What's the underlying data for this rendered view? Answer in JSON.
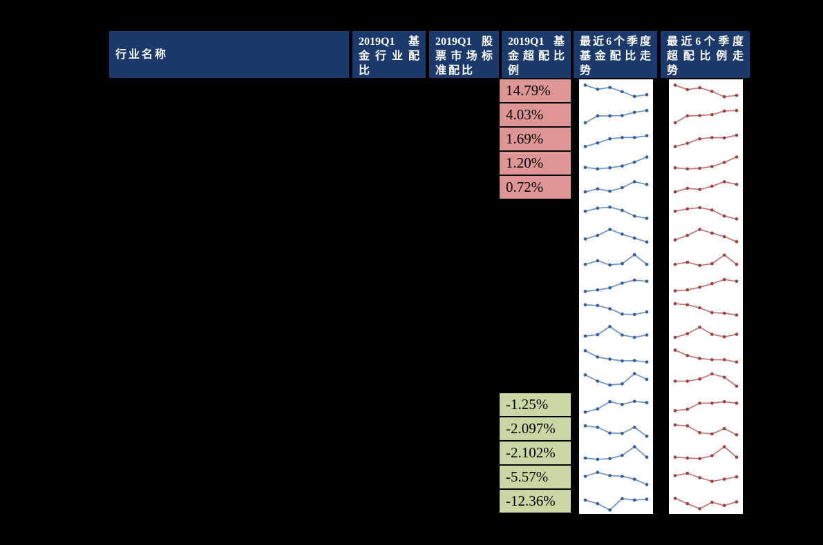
{
  "colors": {
    "page_bg": "#000000",
    "header_bg": "#1b3a6b",
    "header_text": "#ffffff",
    "positive_cell_bg": "#dd9694",
    "negative_cell_bg": "#c9d7a3",
    "cell_text": "#000000",
    "chart_bg": "#ffffff",
    "fund_line": "#6b92c3",
    "fund_marker": "#2d5b9e",
    "over_line": "#c17673",
    "over_marker": "#a23b39"
  },
  "table": {
    "columns": [
      {
        "label": "行业名称",
        "lines": [
          "行业名称"
        ]
      },
      {
        "label": "2019Q1 基金行业配比",
        "lines": [
          "2019Q1 基",
          "金行业配",
          "比"
        ]
      },
      {
        "label": "2019Q1 股票市场标准配比",
        "lines": [
          "2019Q1 股",
          "票市场标",
          "准配比"
        ]
      },
      {
        "label": "2019Q1基金超配比例",
        "lines": [
          "2019Q1 基",
          "金超配比",
          "例"
        ]
      },
      {
        "label": "最近6个季度基金配比走势",
        "lines": [
          "最近6个季度",
          "基金配比走",
          "势"
        ]
      },
      {
        "label": "最近6个季度超配比例走势",
        "lines": [
          "最近6个季度",
          "超配比例走",
          "势"
        ]
      }
    ]
  },
  "chart_data": {
    "type": "table",
    "title": "2019Q1 基金行业配比与超配比例",
    "columns": [
      "行业名称",
      "2019Q1 基金行业配比",
      "2019Q1 股票市场标准配比",
      "2019Q1基金超配比例",
      "最近6个季度基金配比走势",
      "最近6个季度超配比例走势"
    ],
    "sparkline_points_per_row": 6,
    "sparkline_scale": "normalized 0-1, estimated from pixels",
    "rows": [
      {
        "over_ratio": "14.79%",
        "highlight": "positive",
        "fund_trend": [
          0.85,
          0.62,
          0.72,
          0.48,
          0.22,
          0.32
        ],
        "over_trend": [
          0.85,
          0.6,
          0.7,
          0.5,
          0.2,
          0.28
        ]
      },
      {
        "over_ratio": "4.03%",
        "highlight": "positive",
        "fund_trend": [
          0.1,
          0.48,
          0.48,
          0.5,
          0.68,
          0.78
        ],
        "over_trend": [
          0.1,
          0.48,
          0.5,
          0.55,
          0.75,
          0.78
        ]
      },
      {
        "over_ratio": "1.69%",
        "highlight": "positive",
        "fund_trend": [
          0.12,
          0.32,
          0.55,
          0.62,
          0.62,
          0.72
        ],
        "over_trend": [
          0.12,
          0.3,
          0.55,
          0.62,
          0.6,
          0.75
        ]
      },
      {
        "over_ratio": "1.20%",
        "highlight": "positive",
        "fund_trend": [
          0.3,
          0.22,
          0.28,
          0.38,
          0.6,
          0.88
        ],
        "over_trend": [
          0.28,
          0.22,
          0.25,
          0.35,
          0.58,
          0.88
        ]
      },
      {
        "over_ratio": "0.72%",
        "highlight": "positive",
        "fund_trend": [
          0.28,
          0.45,
          0.32,
          0.52,
          0.85,
          0.7
        ],
        "over_trend": [
          0.28,
          0.48,
          0.42,
          0.6,
          0.85,
          0.7
        ]
      },
      {
        "over_ratio": null,
        "highlight": "none",
        "fund_trend": [
          0.55,
          0.72,
          0.78,
          0.6,
          0.28,
          0.15
        ],
        "over_trend": [
          0.55,
          0.68,
          0.75,
          0.62,
          0.28,
          0.12
        ]
      },
      {
        "over_ratio": null,
        "highlight": "none",
        "fund_trend": [
          0.35,
          0.55,
          0.88,
          0.62,
          0.4,
          0.18
        ],
        "over_trend": [
          0.3,
          0.55,
          0.88,
          0.68,
          0.48,
          0.2
        ]
      },
      {
        "over_ratio": null,
        "highlight": "none",
        "fund_trend": [
          0.28,
          0.48,
          0.25,
          0.32,
          0.82,
          0.28
        ],
        "over_trend": [
          0.28,
          0.4,
          0.22,
          0.32,
          0.8,
          0.28
        ]
      },
      {
        "over_ratio": null,
        "highlight": "none",
        "fund_trend": [
          0.12,
          0.2,
          0.32,
          0.58,
          0.75,
          0.68
        ],
        "over_trend": [
          0.15,
          0.2,
          0.35,
          0.55,
          0.78,
          0.68
        ]
      },
      {
        "over_ratio": null,
        "highlight": "none",
        "fund_trend": [
          0.72,
          0.68,
          0.5,
          0.2,
          0.18,
          0.32
        ],
        "over_trend": [
          0.78,
          0.72,
          0.55,
          0.28,
          0.25,
          0.15
        ]
      },
      {
        "over_ratio": null,
        "highlight": "none",
        "fund_trend": [
          0.32,
          0.4,
          0.85,
          0.38,
          0.25,
          0.38
        ],
        "over_trend": [
          0.25,
          0.45,
          0.82,
          0.42,
          0.28,
          0.42
        ]
      },
      {
        "over_ratio": null,
        "highlight": "none",
        "fund_trend": [
          0.85,
          0.5,
          0.38,
          0.28,
          0.3,
          0.22
        ],
        "over_trend": [
          0.88,
          0.58,
          0.42,
          0.35,
          0.35,
          0.22
        ]
      },
      {
        "over_ratio": null,
        "highlight": "none",
        "fund_trend": [
          0.85,
          0.5,
          0.28,
          0.35,
          0.92,
          0.6
        ],
        "over_trend": [
          0.5,
          0.5,
          0.62,
          0.9,
          0.72,
          0.22
        ]
      },
      {
        "over_ratio": "-1.25%",
        "highlight": "negative",
        "fund_trend": [
          0.12,
          0.3,
          0.7,
          0.55,
          0.72,
          0.65
        ],
        "over_trend": [
          0.2,
          0.28,
          0.62,
          0.62,
          0.7,
          0.62
        ]
      },
      {
        "over_ratio": "-2.097%",
        "highlight": "negative",
        "fund_trend": [
          0.7,
          0.62,
          0.3,
          0.28,
          0.62,
          0.12
        ],
        "over_trend": [
          0.75,
          0.7,
          0.32,
          0.25,
          0.55,
          0.2
        ]
      },
      {
        "over_ratio": "-2.102%",
        "highlight": "negative",
        "fund_trend": [
          0.25,
          0.18,
          0.22,
          0.4,
          0.88,
          0.3
        ],
        "over_trend": [
          0.3,
          0.25,
          0.22,
          0.38,
          0.88,
          0.3
        ]
      },
      {
        "over_ratio": "-5.57%",
        "highlight": "negative",
        "fund_trend": [
          0.58,
          0.8,
          0.62,
          0.58,
          0.42,
          0.12
        ],
        "over_trend": [
          0.62,
          0.75,
          0.5,
          0.3,
          0.42,
          0.55
        ]
      },
      {
        "over_ratio": "-12.36%",
        "highlight": "negative",
        "fund_trend": [
          0.6,
          0.4,
          0.05,
          0.68,
          0.6,
          0.65
        ],
        "over_trend": [
          0.7,
          0.4,
          0.12,
          0.48,
          0.3,
          0.5
        ]
      }
    ]
  }
}
